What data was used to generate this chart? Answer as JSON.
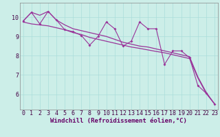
{
  "xlabel": "Windchill (Refroidissement éolien,°C)",
  "bg_color": "#cceee8",
  "line_color": "#993399",
  "x": [
    0,
    1,
    2,
    3,
    4,
    5,
    6,
    7,
    8,
    9,
    10,
    11,
    12,
    13,
    14,
    15,
    16,
    17,
    18,
    19,
    20,
    21,
    22,
    23
  ],
  "y_jagged": [
    9.8,
    10.25,
    9.65,
    10.3,
    9.85,
    9.35,
    9.25,
    9.05,
    8.55,
    9.0,
    9.75,
    9.4,
    8.5,
    8.75,
    9.75,
    9.4,
    9.4,
    7.55,
    8.25,
    8.25,
    7.9,
    6.45,
    6.05,
    5.5
  ],
  "y_line1": [
    9.8,
    10.25,
    10.1,
    10.3,
    9.85,
    9.6,
    9.4,
    9.3,
    9.2,
    9.1,
    9.0,
    8.85,
    8.7,
    8.6,
    8.5,
    8.45,
    8.35,
    8.25,
    8.15,
    8.05,
    7.95,
    6.9,
    6.1,
    5.5
  ],
  "y_line2": [
    9.75,
    9.65,
    9.6,
    9.55,
    9.45,
    9.35,
    9.2,
    9.1,
    8.95,
    8.85,
    8.75,
    8.65,
    8.55,
    8.45,
    8.38,
    8.3,
    8.22,
    8.15,
    8.05,
    7.95,
    7.85,
    6.85,
    6.05,
    5.5
  ],
  "ylim": [
    5.2,
    10.75
  ],
  "xlim": [
    -0.4,
    23.4
  ],
  "yticks": [
    6,
    7,
    8,
    9,
    10
  ],
  "xticks": [
    0,
    1,
    2,
    3,
    4,
    5,
    6,
    7,
    8,
    9,
    10,
    11,
    12,
    13,
    14,
    15,
    16,
    17,
    18,
    19,
    20,
    21,
    22,
    23
  ],
  "grid_color": "#aaddda",
  "xlabel_fontsize": 6.5,
  "tick_fontsize": 6,
  "spine_color": "#888888"
}
